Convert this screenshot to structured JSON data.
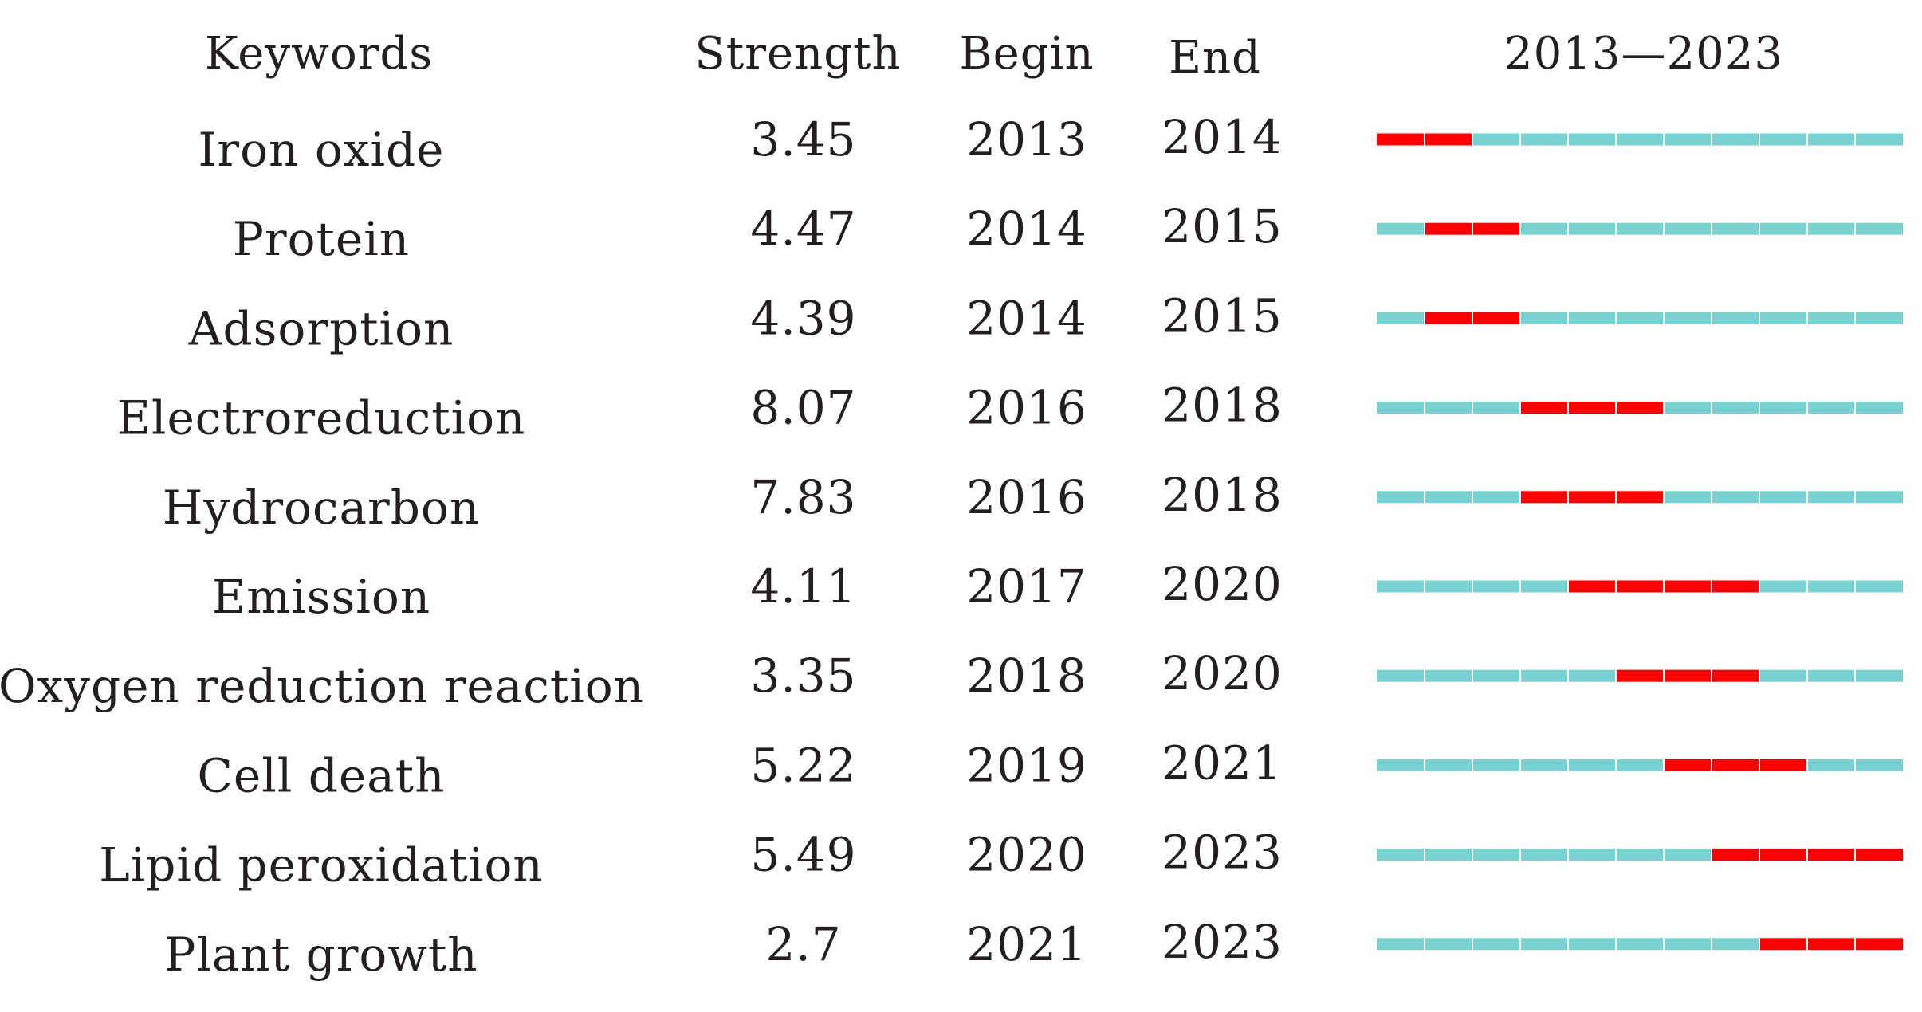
{
  "chart_data": {
    "type": "table",
    "title": "",
    "columns": [
      "Keywords",
      "Strength",
      "Begin",
      "End",
      "2013—2023"
    ],
    "year_range": [
      2013,
      2023
    ],
    "rows": [
      {
        "keyword": "Iron oxide",
        "strength": "3.45",
        "begin": "2013",
        "end": "2014"
      },
      {
        "keyword": "Protein",
        "strength": "4.47",
        "begin": "2014",
        "end": "2015"
      },
      {
        "keyword": "Adsorption",
        "strength": "4.39",
        "begin": "2014",
        "end": "2015"
      },
      {
        "keyword": "Electroreduction",
        "strength": "8.07",
        "begin": "2016",
        "end": "2018"
      },
      {
        "keyword": "Hydrocarbon",
        "strength": "7.83",
        "begin": "2016",
        "end": "2018"
      },
      {
        "keyword": "Emission",
        "strength": "4.11",
        "begin": "2017",
        "end": "2020"
      },
      {
        "keyword": "Oxygen reduction reaction",
        "strength": "3.35",
        "begin": "2018",
        "end": "2020"
      },
      {
        "keyword": "Cell death",
        "strength": "5.22",
        "begin": "2019",
        "end": "2021"
      },
      {
        "keyword": "Lipid peroxidation",
        "strength": "5.49",
        "begin": "2020",
        "end": "2023"
      },
      {
        "keyword": "Plant growth",
        "strength": "2.7",
        "begin": "2021",
        "end": "2023"
      }
    ],
    "colors": {
      "burst": "#ff0000",
      "base": "#78d2d2",
      "text": "#231f20"
    }
  }
}
